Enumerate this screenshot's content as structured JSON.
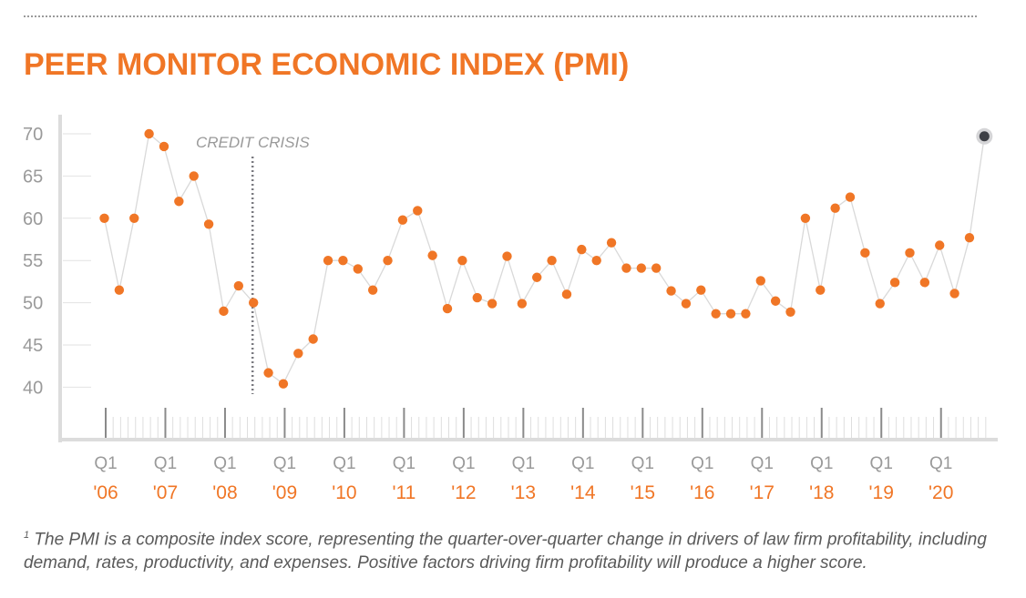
{
  "page": {
    "title": "PEER MONITOR ECONOMIC INDEX (PMI)",
    "footnote_marker": "1",
    "footnote": "The PMI is a composite index score, representing the quarter-over-quarter change in drivers of law firm profitability, including demand, rates, productivity, and expenses. Positive factors driving firm profitability will produce a higher score.",
    "colors": {
      "accent": "#f07626",
      "line": "#d9d9d9",
      "axis": "#dcdcdc",
      "tick_text": "#9a9a9a",
      "highlight": "#3d3f45"
    }
  },
  "chart_data": {
    "type": "line",
    "title": "PEER MONITOR ECONOMIC INDEX (PMI)",
    "xlabel": "",
    "ylabel": "",
    "ylim": [
      35,
      72
    ],
    "yticks": [
      40,
      45,
      50,
      55,
      60,
      65,
      70
    ],
    "grid": false,
    "x_start": "2006 Q1",
    "x_end": "2020 Q4",
    "x_ticks": [
      {
        "q": "Q1",
        "year": "'06"
      },
      {
        "q": "Q1",
        "year": "'07"
      },
      {
        "q": "Q1",
        "year": "'08"
      },
      {
        "q": "Q1",
        "year": "'09"
      },
      {
        "q": "Q1",
        "year": "'10"
      },
      {
        "q": "Q1",
        "year": "'11"
      },
      {
        "q": "Q1",
        "year": "'12"
      },
      {
        "q": "Q1",
        "year": "'13"
      },
      {
        "q": "Q1",
        "year": "'14"
      },
      {
        "q": "Q1",
        "year": "'15"
      },
      {
        "q": "Q1",
        "year": "'16"
      },
      {
        "q": "Q1",
        "year": "'17"
      },
      {
        "q": "Q1",
        "year": "'18"
      },
      {
        "q": "Q1",
        "year": "'19"
      },
      {
        "q": "Q1",
        "year": "'20"
      }
    ],
    "series": [
      {
        "name": "PMI",
        "values": [
          60,
          51.5,
          60,
          70,
          68.5,
          62,
          65,
          59.3,
          49,
          52,
          50,
          41.7,
          40.4,
          44,
          45.7,
          55,
          55,
          54,
          51.5,
          55,
          59.8,
          60.9,
          55.6,
          49.3,
          55,
          50.6,
          49.9,
          55.5,
          49.9,
          53,
          55,
          51,
          56.3,
          55,
          57.1,
          54.1,
          54.1,
          54.1,
          51.4,
          49.9,
          51.5,
          48.7,
          48.7,
          48.7,
          52.6,
          50.2,
          48.9,
          60,
          51.5,
          61.2,
          62.5,
          55.9,
          49.9,
          52.4,
          55.9,
          52.4,
          56.8,
          51.1,
          57.7,
          69.7
        ],
        "highlight_last": true
      }
    ],
    "annotations": [
      {
        "label": "CREDIT CRISIS",
        "x_quarter_index": 10,
        "style": "dotted-vertical"
      }
    ],
    "legend": "none"
  }
}
